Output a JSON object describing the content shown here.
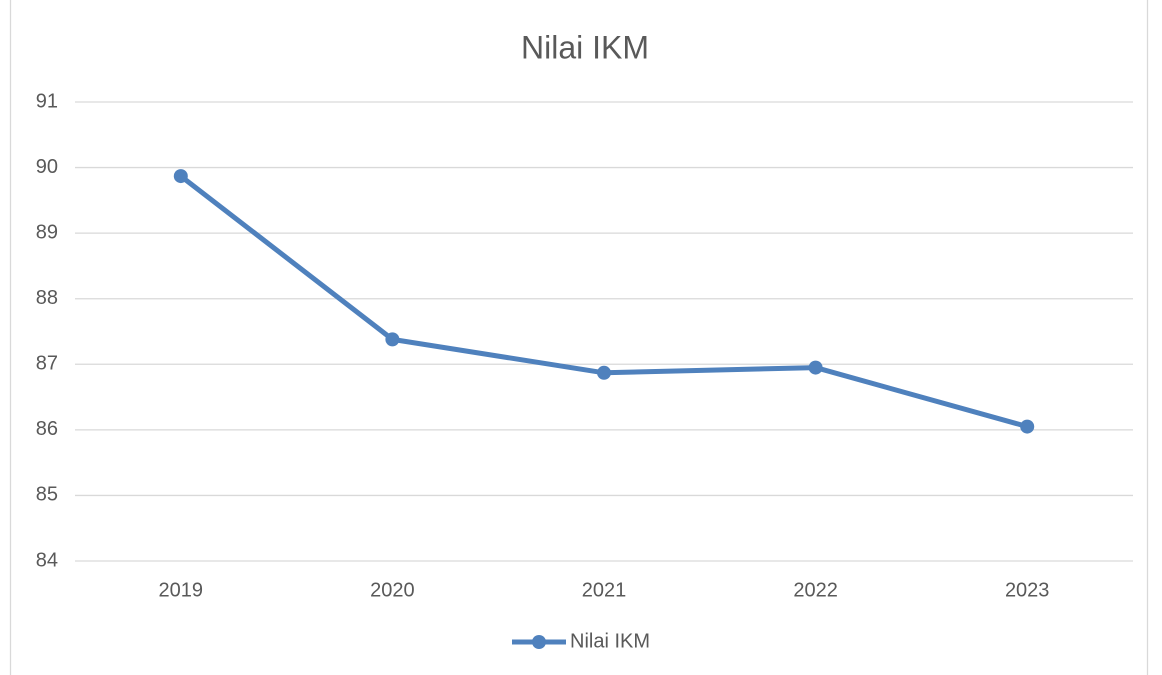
{
  "chart_data": {
    "type": "line",
    "title": "Nilai IKM",
    "categories": [
      "2019",
      "2020",
      "2021",
      "2022",
      "2023"
    ],
    "series": [
      {
        "name": "Nilai IKM",
        "color": "#4f81bd",
        "values": [
          89.87,
          87.38,
          86.87,
          86.95,
          86.05
        ]
      }
    ],
    "ylim": [
      84,
      91
    ],
    "yticks": [
      84,
      85,
      86,
      87,
      88,
      89,
      90,
      91
    ],
    "grid": true,
    "legend": "bottom"
  }
}
